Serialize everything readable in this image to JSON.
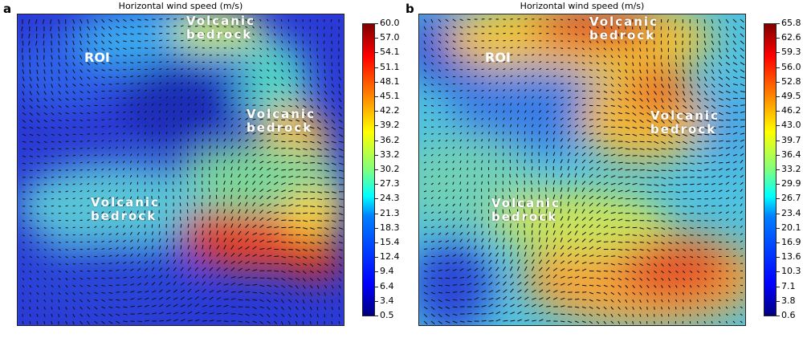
{
  "panels": [
    {
      "letter": "a",
      "title": "Horizontal wind speed (m/s)",
      "labels": {
        "roi": "ROI",
        "bedrock_1": [
          "Volcanic",
          "bedrock"
        ],
        "bedrock_2": [
          "Volcanic",
          "bedrock"
        ],
        "bedrock_3": [
          "Volcanic",
          "bedrock"
        ]
      },
      "colorbar_ticks": [
        "60.0",
        "57.0",
        "54.1",
        "51.1",
        "48.1",
        "45.1",
        "42.2",
        "39.2",
        "36.2",
        "33.2",
        "30.2",
        "27.3",
        "24.3",
        "21.3",
        "18.3",
        "15.4",
        "12.4",
        "9.4",
        "6.4",
        "3.4",
        "0.5"
      ]
    },
    {
      "letter": "b",
      "title": "Horizontal wind speed (m/s)",
      "labels": {
        "roi": "ROI",
        "bedrock_1": [
          "Volcanic",
          "bedrock"
        ],
        "bedrock_2": [
          "Volcanic",
          "bedrock"
        ],
        "bedrock_3": [
          "Volcanic",
          "bedrock"
        ]
      },
      "colorbar_ticks": [
        "65.8",
        "62.6",
        "59.3",
        "56.0",
        "52.8",
        "49.5",
        "46.2",
        "43.0",
        "39.7",
        "36.4",
        "33.2",
        "29.9",
        "26.7",
        "23.4",
        "20.1",
        "16.9",
        "13.6",
        "10.3",
        "7.1",
        "3.8",
        "0.6"
      ]
    }
  ],
  "chart_data": [
    {
      "type": "heatmap",
      "title": "Horizontal wind speed (m/s)",
      "colormap": "jet",
      "colorbar_range": [
        0.5,
        60.0
      ],
      "colorbar_ticks": [
        60.0,
        57.0,
        54.1,
        51.1,
        48.1,
        45.1,
        42.2,
        39.2,
        36.2,
        33.2,
        30.2,
        27.3,
        24.3,
        21.3,
        18.3,
        15.4,
        12.4,
        9.4,
        6.4,
        3.4,
        0.5
      ],
      "overlay": "wind direction vectors (quiver)",
      "annotations": [
        "ROI",
        "Volcanic bedrock",
        "Volcanic bedrock",
        "Volcanic bedrock"
      ]
    },
    {
      "type": "heatmap",
      "title": "Horizontal wind speed (m/s)",
      "colormap": "jet",
      "colorbar_range": [
        0.6,
        65.8
      ],
      "colorbar_ticks": [
        65.8,
        62.6,
        59.3,
        56.0,
        52.8,
        49.5,
        46.2,
        43.0,
        39.7,
        36.4,
        33.2,
        29.9,
        26.7,
        23.4,
        20.1,
        16.9,
        13.6,
        10.3,
        7.1,
        3.8,
        0.6
      ],
      "overlay": "wind direction vectors (quiver)",
      "annotations": [
        "ROI",
        "Volcanic bedrock",
        "Volcanic bedrock",
        "Volcanic bedrock"
      ]
    }
  ]
}
